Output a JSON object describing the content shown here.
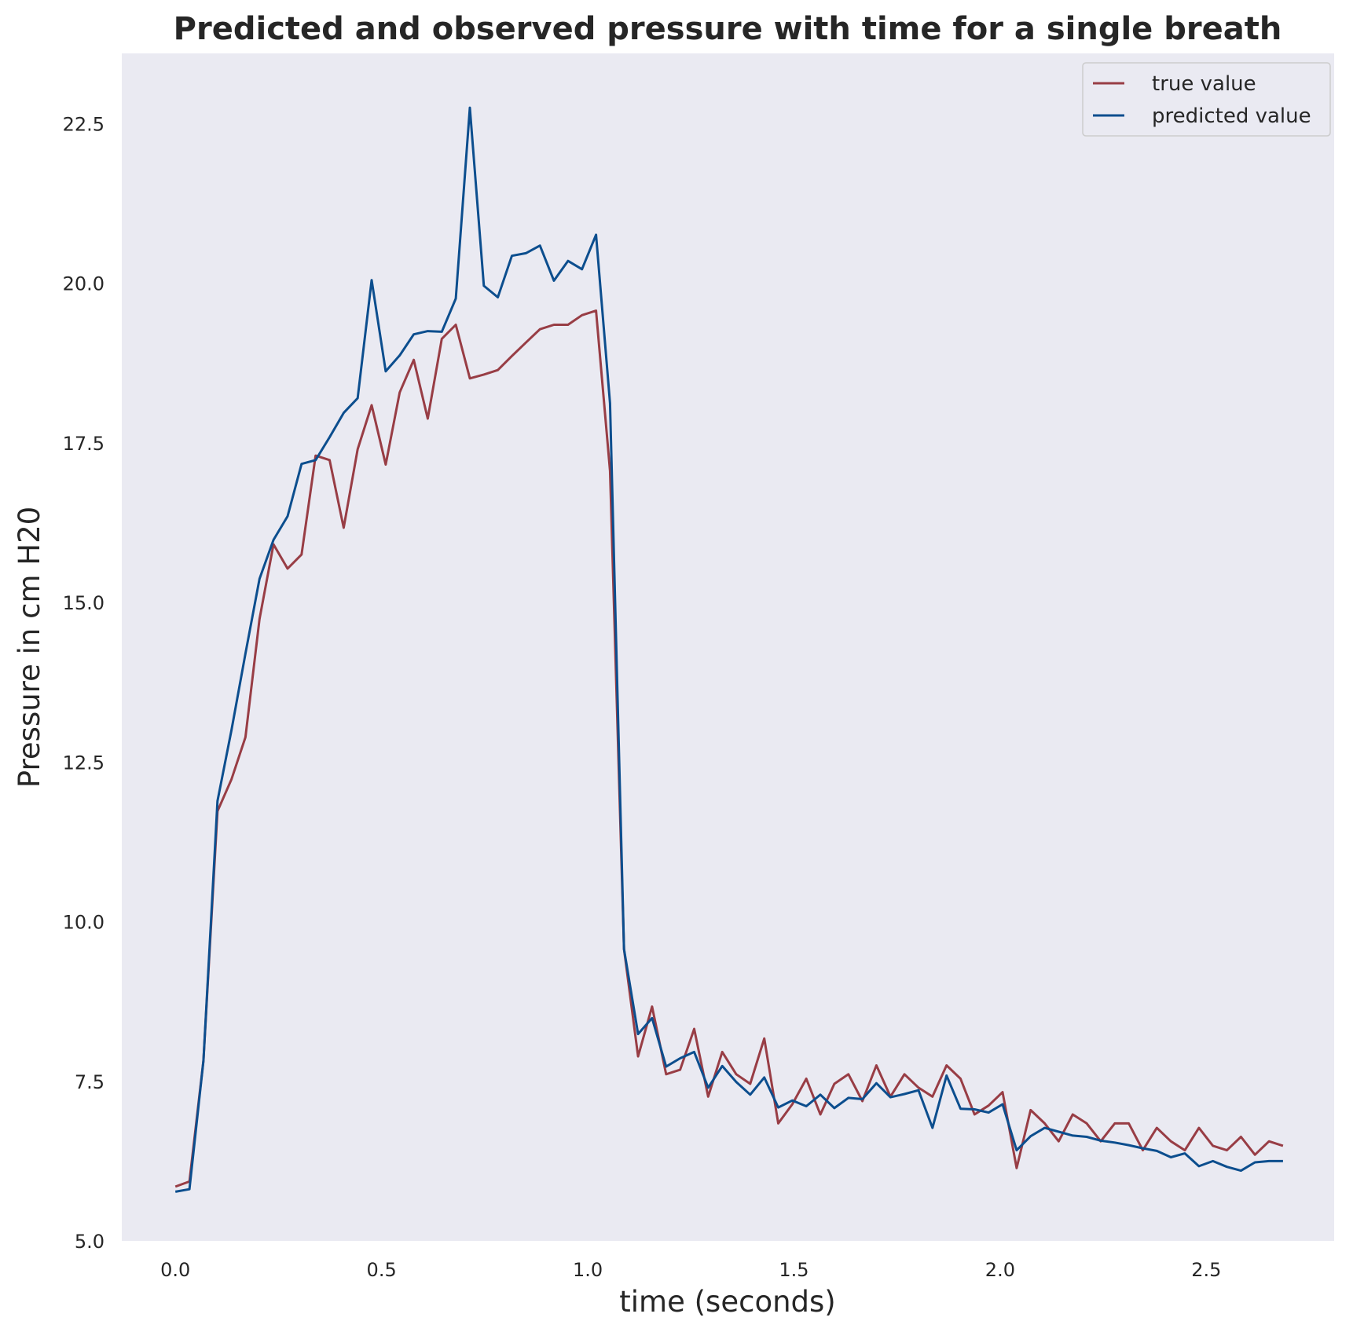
{
  "chart_data": {
    "type": "line",
    "title": "Predicted and observed pressure with time for a single breath",
    "xlabel": "time (seconds)",
    "ylabel": "Pressure in cm H20",
    "xlim": [
      -0.13,
      2.81
    ],
    "ylim": [
      5.0,
      23.6
    ],
    "xticks": [
      0.0,
      0.5,
      1.0,
      1.5,
      2.0,
      2.5
    ],
    "xtick_labels": [
      "0.0",
      "0.5",
      "1.0",
      "1.5",
      "2.0",
      "2.5"
    ],
    "yticks": [
      5.0,
      7.5,
      10.0,
      12.5,
      15.0,
      17.5,
      20.0,
      22.5
    ],
    "ytick_labels": [
      "5.0",
      "7.5",
      "10.0",
      "12.5",
      "15.0",
      "17.5",
      "20.0",
      "22.5"
    ],
    "grid": false,
    "legend_position": "top-right",
    "background": "#eaeaf2",
    "x": [
      0.0,
      0.034,
      0.068,
      0.102,
      0.136,
      0.17,
      0.204,
      0.238,
      0.272,
      0.306,
      0.34,
      0.374,
      0.408,
      0.442,
      0.476,
      0.51,
      0.544,
      0.578,
      0.612,
      0.646,
      0.68,
      0.714,
      0.748,
      0.782,
      0.816,
      0.85,
      0.884,
      0.918,
      0.952,
      0.986,
      1.02,
      1.054,
      1.088,
      1.122,
      1.156,
      1.19,
      1.224,
      1.258,
      1.292,
      1.326,
      1.36,
      1.394,
      1.428,
      1.462,
      1.496,
      1.53,
      1.564,
      1.598,
      1.632,
      1.666,
      1.7,
      1.734,
      1.768,
      1.802,
      1.836,
      1.87,
      1.904,
      1.938,
      1.972,
      2.006,
      2.04,
      2.074,
      2.108,
      2.142,
      2.176,
      2.21,
      2.244,
      2.278,
      2.312,
      2.346,
      2.38,
      2.414,
      2.448,
      2.482,
      2.516,
      2.55,
      2.584,
      2.618,
      2.652,
      2.686
    ],
    "series": [
      {
        "name": "true value",
        "color": "#983d45",
        "values": [
          5.85,
          5.93,
          7.82,
          11.73,
          12.23,
          12.89,
          14.74,
          15.91,
          15.53,
          15.75,
          17.3,
          17.23,
          16.17,
          17.4,
          18.09,
          17.16,
          18.29,
          18.8,
          17.88,
          19.13,
          19.35,
          18.51,
          18.57,
          18.64,
          18.86,
          19.07,
          19.28,
          19.35,
          19.35,
          19.5,
          19.57,
          17.06,
          9.57,
          7.89,
          8.67,
          7.61,
          7.68,
          8.32,
          7.26,
          7.96,
          7.61,
          7.46,
          8.17,
          6.84,
          7.14,
          7.54,
          6.98,
          7.46,
          7.61,
          7.19,
          7.75,
          7.26,
          7.61,
          7.4,
          7.26,
          7.75,
          7.54,
          6.98,
          7.12,
          7.33,
          6.14,
          7.05,
          6.84,
          6.56,
          6.98,
          6.84,
          6.56,
          6.84,
          6.84,
          6.42,
          6.77,
          6.56,
          6.42,
          6.77,
          6.49,
          6.42,
          6.63,
          6.35,
          6.56,
          6.49
        ]
      },
      {
        "name": "predicted value",
        "color": "#0c4e8e",
        "values": [
          5.77,
          5.81,
          7.82,
          11.89,
          13.0,
          14.2,
          15.37,
          15.98,
          16.35,
          17.17,
          17.23,
          17.59,
          17.97,
          18.2,
          20.05,
          18.62,
          18.87,
          19.2,
          19.25,
          19.24,
          19.76,
          22.75,
          19.96,
          19.78,
          20.43,
          20.47,
          20.59,
          20.04,
          20.35,
          20.22,
          20.76,
          18.12,
          9.57,
          8.24,
          8.49,
          7.73,
          7.86,
          7.96,
          7.4,
          7.74,
          7.49,
          7.29,
          7.56,
          7.09,
          7.2,
          7.11,
          7.29,
          7.08,
          7.24,
          7.22,
          7.47,
          7.25,
          7.3,
          7.36,
          6.77,
          7.59,
          7.07,
          7.06,
          7.01,
          7.14,
          6.42,
          6.64,
          6.77,
          6.71,
          6.65,
          6.63,
          6.57,
          6.54,
          6.5,
          6.45,
          6.41,
          6.31,
          6.37,
          6.17,
          6.25,
          6.16,
          6.1,
          6.23,
          6.25,
          6.25
        ]
      }
    ]
  }
}
